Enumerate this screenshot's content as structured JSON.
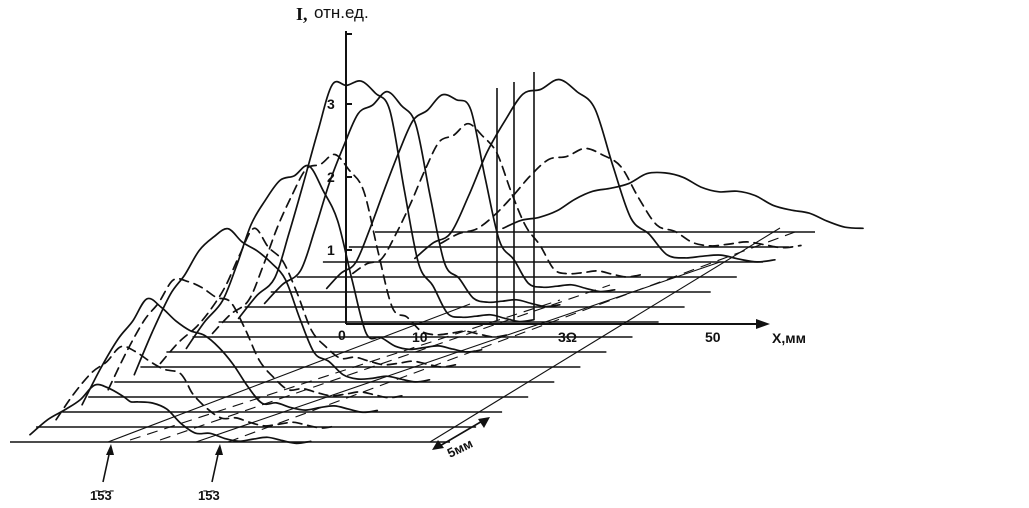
{
  "chart_data": {
    "type": "line",
    "title": "",
    "ylabel": "I, отн.ед.",
    "ylabel_symbol": "I,",
    "ylabel_units": "отн.ед.",
    "xlabel": "X,мм",
    "x_ticks": [
      "0",
      "10",
      "3Ω",
      "50"
    ],
    "y_ticks": [
      "1",
      "2",
      "3"
    ],
    "ylim": [
      0,
      3.7
    ],
    "xlim": [
      -5,
      65
    ],
    "depth_scale_label": "5мм",
    "direction_labels": [
      "1̄5̄3̄",
      "1̄5̄3"
    ],
    "series_style_legend": "none",
    "grid": false,
    "series": [
      {
        "style": "solid",
        "x": [
          -5,
          0,
          4,
          8,
          10,
          14,
          18,
          22,
          26,
          30,
          34
        ],
        "values": [
          0.1,
          0.45,
          0.78,
          0.62,
          0.55,
          0.45,
          0.12,
          0.05,
          0.04,
          0.02,
          0.01
        ]
      },
      {
        "style": "dashed",
        "x": [
          -5,
          0,
          4,
          8,
          12,
          14,
          18,
          22,
          26,
          30,
          34
        ],
        "values": [
          0.1,
          0.75,
          1.1,
          0.9,
          0.75,
          0.45,
          0.12,
          0.06,
          0.04,
          0.02,
          0.02
        ]
      },
      {
        "style": "solid",
        "x": [
          -5,
          0,
          4,
          8,
          12,
          16,
          20,
          24,
          28,
          32,
          36
        ],
        "values": [
          0.1,
          1.0,
          1.55,
          1.25,
          1.05,
          0.65,
          0.12,
          0.06,
          0.06,
          0.04,
          0.02
        ]
      },
      {
        "style": "dashed",
        "x": [
          -5,
          0,
          4,
          8,
          12,
          16,
          20,
          24,
          28,
          32,
          36
        ],
        "values": [
          0.1,
          1.05,
          1.6,
          1.5,
          1.3,
          0.5,
          0.1,
          0.06,
          0.04,
          0.03,
          0.02
        ]
      },
      {
        "style": "solid",
        "x": [
          -5,
          0,
          4,
          8,
          12,
          16,
          20,
          24,
          28,
          32,
          36
        ],
        "values": [
          0.1,
          1.2,
          1.8,
          2.1,
          1.8,
          1.4,
          0.4,
          0.1,
          0.05,
          0.04,
          0.03
        ]
      },
      {
        "style": "dashed",
        "x": [
          -5,
          0,
          4,
          8,
          12,
          16,
          20,
          24,
          28,
          32,
          36
        ],
        "values": [
          0.05,
          0.55,
          1.1,
          1.9,
          1.45,
          0.5,
          0.12,
          0.08,
          0.05,
          0.04,
          0.03
        ]
      },
      {
        "style": "solid",
        "x": [
          -5,
          0,
          4,
          8,
          12,
          16,
          20,
          24,
          28,
          32,
          36
        ],
        "values": [
          0.05,
          0.7,
          1.75,
          2.35,
          2.55,
          1.8,
          0.25,
          0.08,
          0.06,
          0.04,
          0.03
        ]
      },
      {
        "style": "dashed",
        "x": [
          -5,
          0,
          4,
          8,
          12,
          16,
          20,
          24,
          28,
          32,
          36
        ],
        "values": [
          0.05,
          0.5,
          1.5,
          2.3,
          2.5,
          2.0,
          0.4,
          0.08,
          0.05,
          0.04,
          0.03
        ]
      },
      {
        "style": "solid",
        "x": [
          -5,
          0,
          4,
          8,
          12,
          16,
          20,
          24,
          28,
          32,
          36
        ],
        "values": [
          0.05,
          0.6,
          1.9,
          3.25,
          3.3,
          2.9,
          0.8,
          0.12,
          0.08,
          0.05,
          0.03
        ]
      },
      {
        "style": "solid",
        "x": [
          -5,
          0,
          4,
          8,
          12,
          16,
          20,
          24,
          28,
          32,
          36
        ],
        "values": [
          0.05,
          0.5,
          1.7,
          2.65,
          2.95,
          2.5,
          0.6,
          0.12,
          0.08,
          0.05,
          0.03
        ]
      },
      {
        "style": "solid",
        "x": [
          0,
          4,
          8,
          12,
          16,
          20,
          24,
          28,
          32,
          36,
          40
        ],
        "values": [
          0.05,
          0.4,
          1.4,
          2.35,
          2.7,
          2.5,
          0.7,
          0.12,
          0.08,
          0.05,
          0.03
        ]
      },
      {
        "style": "dashed",
        "x": [
          0,
          4,
          8,
          12,
          16,
          20,
          24,
          28,
          32,
          36,
          40
        ],
        "values": [
          0.05,
          0.25,
          1.0,
          1.85,
          2.1,
          1.7,
          0.7,
          0.1,
          0.06,
          0.04,
          0.03
        ]
      },
      {
        "style": "solid",
        "x": [
          5,
          10,
          15,
          20,
          25,
          30,
          35,
          40,
          45,
          50,
          55
        ],
        "values": [
          0.05,
          0.4,
          1.5,
          2.3,
          2.5,
          2.1,
          0.6,
          0.1,
          0.08,
          0.04,
          0.03
        ]
      },
      {
        "style": "dashed",
        "x": [
          5,
          10,
          15,
          20,
          25,
          30,
          35,
          40,
          45,
          50,
          55
        ],
        "values": [
          0.05,
          0.25,
          0.7,
          1.2,
          1.35,
          1.1,
          0.3,
          0.06,
          0.04,
          0.03,
          0.02
        ]
      },
      {
        "style": "solid",
        "x": [
          10,
          15,
          20,
          25,
          30,
          35,
          40,
          45,
          50,
          55,
          60
        ],
        "values": [
          0.05,
          0.2,
          0.45,
          0.6,
          0.8,
          0.75,
          0.55,
          0.5,
          0.3,
          0.15,
          0.05
        ]
      }
    ]
  }
}
